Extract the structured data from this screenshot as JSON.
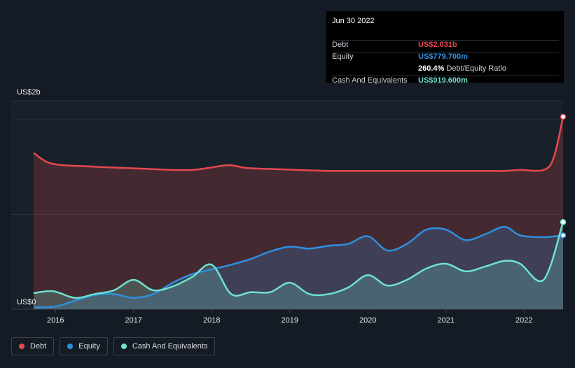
{
  "tooltip": {
    "date": "Jun 30 2022",
    "debt_label": "Debt",
    "debt_value": "US$2.031b",
    "equity_label": "Equity",
    "equity_value": "US$779.700m",
    "ratio_value": "260.4%",
    "ratio_label": "Debt/Equity Ratio",
    "cash_label": "Cash And Equivalents",
    "cash_value": "US$919.600m"
  },
  "legend": [
    {
      "label": "Debt",
      "color": "#e5484d"
    },
    {
      "label": "Equity",
      "color": "#2f8fde"
    },
    {
      "label": "Cash And Equivalents",
      "color": "#6ee3cf"
    }
  ],
  "chart_data": {
    "type": "area",
    "y_axis_labels": {
      "top": "US$2b",
      "bottom": "US$0"
    },
    "ylim": [
      0,
      2.2
    ],
    "xlim": [
      2015.72,
      2022.5
    ],
    "x_ticks": [
      2016,
      2017,
      2018,
      2019,
      2020,
      2021,
      2022
    ],
    "x_tick_labels": [
      "2016",
      "2017",
      "2018",
      "2019",
      "2020",
      "2021",
      "2022"
    ],
    "grid": "horizontal",
    "legend_position": "bottom-left",
    "series": [
      {
        "name": "Debt",
        "color": "#e5484d",
        "points": [
          [
            2015.72,
            1.65
          ],
          [
            2015.9,
            1.55
          ],
          [
            2016.1,
            1.52
          ],
          [
            2016.35,
            1.51
          ],
          [
            2016.6,
            1.5
          ],
          [
            2016.9,
            1.49
          ],
          [
            2017.2,
            1.48
          ],
          [
            2017.5,
            1.47
          ],
          [
            2017.75,
            1.47
          ],
          [
            2017.95,
            1.49
          ],
          [
            2018.1,
            1.51
          ],
          [
            2018.25,
            1.52
          ],
          [
            2018.45,
            1.49
          ],
          [
            2018.75,
            1.48
          ],
          [
            2019.1,
            1.47
          ],
          [
            2019.5,
            1.46
          ],
          [
            2019.8,
            1.46
          ],
          [
            2020.25,
            1.46
          ],
          [
            2020.6,
            1.46
          ],
          [
            2021.0,
            1.46
          ],
          [
            2021.4,
            1.46
          ],
          [
            2021.75,
            1.46
          ],
          [
            2021.95,
            1.47
          ],
          [
            2022.25,
            1.47
          ],
          [
            2022.38,
            1.6
          ],
          [
            2022.5,
            2.031
          ]
        ]
      },
      {
        "name": "Equity",
        "color": "#2f8fde",
        "points": [
          [
            2015.72,
            0.02
          ],
          [
            2016.0,
            0.03
          ],
          [
            2016.25,
            0.09
          ],
          [
            2016.5,
            0.15
          ],
          [
            2016.75,
            0.16
          ],
          [
            2017.0,
            0.12
          ],
          [
            2017.25,
            0.16
          ],
          [
            2017.5,
            0.28
          ],
          [
            2017.75,
            0.37
          ],
          [
            2018.0,
            0.42
          ],
          [
            2018.25,
            0.47
          ],
          [
            2018.5,
            0.53
          ],
          [
            2018.75,
            0.61
          ],
          [
            2019.0,
            0.66
          ],
          [
            2019.25,
            0.64
          ],
          [
            2019.5,
            0.67
          ],
          [
            2019.75,
            0.69
          ],
          [
            2020.0,
            0.77
          ],
          [
            2020.25,
            0.62
          ],
          [
            2020.5,
            0.69
          ],
          [
            2020.75,
            0.84
          ],
          [
            2021.0,
            0.84
          ],
          [
            2021.25,
            0.73
          ],
          [
            2021.5,
            0.79
          ],
          [
            2021.75,
            0.87
          ],
          [
            2021.95,
            0.78
          ],
          [
            2022.25,
            0.76
          ],
          [
            2022.5,
            0.7797
          ]
        ]
      },
      {
        "name": "Cash And Equivalents",
        "color": "#6ee3cf",
        "points": [
          [
            2015.72,
            0.17
          ],
          [
            2015.97,
            0.19
          ],
          [
            2016.25,
            0.12
          ],
          [
            2016.5,
            0.16
          ],
          [
            2016.75,
            0.2
          ],
          [
            2017.0,
            0.31
          ],
          [
            2017.25,
            0.2
          ],
          [
            2017.5,
            0.24
          ],
          [
            2017.75,
            0.34
          ],
          [
            2018.0,
            0.47
          ],
          [
            2018.25,
            0.16
          ],
          [
            2018.5,
            0.18
          ],
          [
            2018.75,
            0.18
          ],
          [
            2019.0,
            0.28
          ],
          [
            2019.25,
            0.16
          ],
          [
            2019.5,
            0.16
          ],
          [
            2019.75,
            0.23
          ],
          [
            2020.0,
            0.36
          ],
          [
            2020.25,
            0.25
          ],
          [
            2020.5,
            0.31
          ],
          [
            2020.75,
            0.43
          ],
          [
            2021.0,
            0.48
          ],
          [
            2021.25,
            0.4
          ],
          [
            2021.5,
            0.45
          ],
          [
            2021.75,
            0.51
          ],
          [
            2021.95,
            0.48
          ],
          [
            2022.25,
            0.31
          ],
          [
            2022.5,
            0.9196
          ]
        ]
      }
    ]
  }
}
